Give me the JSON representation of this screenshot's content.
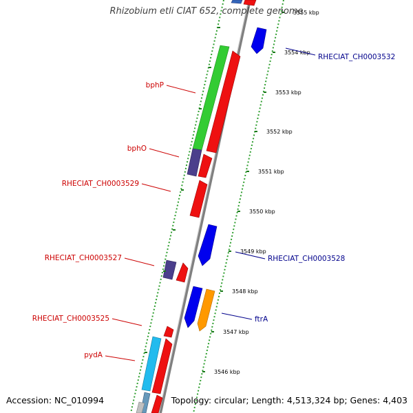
{
  "title": "Rhizobium etli CIAT 652, complete genome",
  "footer": {
    "accession": "Accession: NC_010994",
    "summary": "Topology: circular; Length: 4,513,324 bp; Genes: 4,403"
  },
  "colors": {
    "forward_label": "#cc0000",
    "reverse_label": "#00008b",
    "backbone": "#808080",
    "tick": "#1a7a1a",
    "dashed_track": "#2e9e2e"
  },
  "ticks": [
    {
      "label": "3555 kbp"
    },
    {
      "label": "3554 kbp"
    },
    {
      "label": "3553 kbp"
    },
    {
      "label": "3552 kbp"
    },
    {
      "label": "3551 kbp"
    },
    {
      "label": "3550 kbp"
    },
    {
      "label": "3549 kbp"
    },
    {
      "label": "3548 kbp"
    },
    {
      "label": "3547 kbp"
    },
    {
      "label": "3546 kbp"
    }
  ],
  "gene_labels": [
    {
      "name": "bphP",
      "strand": "forward"
    },
    {
      "name": "bphO",
      "strand": "forward"
    },
    {
      "name": "RHECIAT_CH0003529",
      "strand": "forward"
    },
    {
      "name": "RHECIAT_CH0003527",
      "strand": "forward"
    },
    {
      "name": "RHECIAT_CH0003525",
      "strand": "forward"
    },
    {
      "name": "pydA",
      "strand": "forward"
    },
    {
      "name": "RHECIAT_CH0003532",
      "strand": "reverse"
    },
    {
      "name": "RHECIAT_CH0003528",
      "strand": "reverse"
    },
    {
      "name": "ftrA",
      "strand": "reverse"
    }
  ]
}
